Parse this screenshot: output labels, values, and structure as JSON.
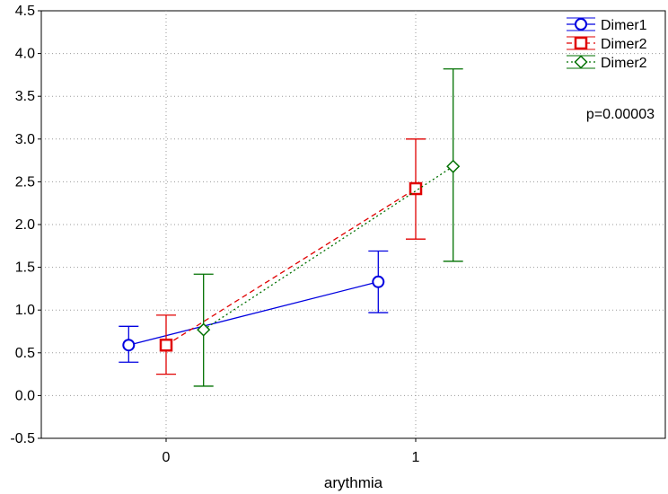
{
  "chart_data": {
    "type": "line",
    "title": "",
    "xlabel": "arythmia",
    "ylabel": "",
    "categories": [
      "0",
      "1"
    ],
    "ylim": [
      -0.5,
      4.5
    ],
    "yticks": [
      "-0.5",
      "0.0",
      "0.5",
      "1.0",
      "1.5",
      "2.0",
      "2.5",
      "3.0",
      "3.5",
      "4.0",
      "4.5"
    ],
    "grid": true,
    "legend_position": "top-right",
    "annotation": "p=0.00003",
    "series": [
      {
        "name": "Dimer1",
        "color": "#0000e0",
        "marker": "circle",
        "line_style": "solid",
        "offset": -0.15,
        "values": [
          0.59,
          1.33
        ],
        "lower": [
          0.39,
          0.97
        ],
        "upper": [
          0.81,
          1.69
        ]
      },
      {
        "name": "Dimer2",
        "color": "#e00000",
        "marker": "square",
        "line_style": "dashed",
        "offset": 0.0,
        "values": [
          0.59,
          2.42
        ],
        "lower": [
          0.25,
          1.83
        ],
        "upper": [
          0.94,
          3.0
        ]
      },
      {
        "name": "Dimer2",
        "color": "#007000",
        "marker": "diamond",
        "line_style": "dotted",
        "offset": 0.15,
        "values": [
          0.77,
          2.68
        ],
        "lower": [
          0.11,
          1.57
        ],
        "upper": [
          1.42,
          3.82
        ]
      }
    ]
  }
}
